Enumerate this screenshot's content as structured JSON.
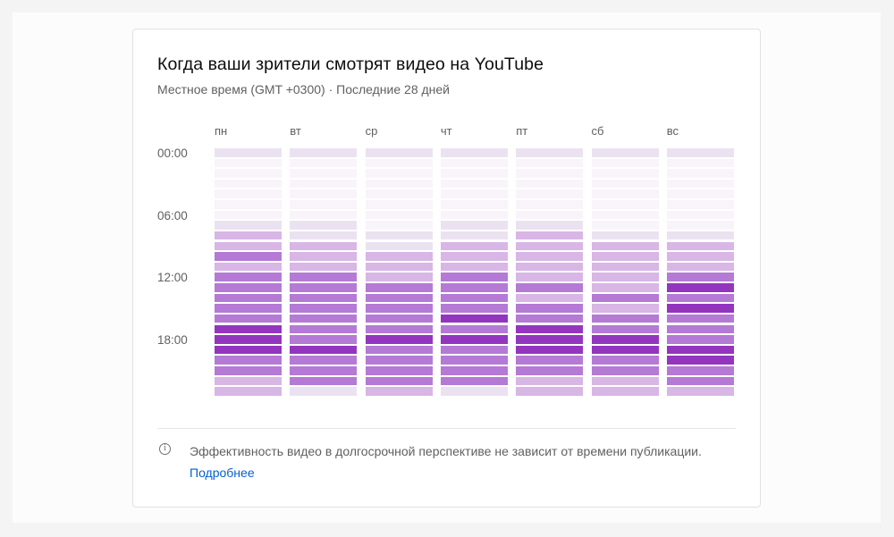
{
  "card": {
    "title": "Когда ваши зрители смотрят видео на YouTube",
    "subtitle": "Местное время (GMT +0300) · Последние 28 дней",
    "info_text": "Эффективность видео в долгосрочной перспективе не зависит от времени публикации.",
    "info_link": "Подробнее"
  },
  "colors": {
    "levels": [
      "#f8f4f9",
      "#ebe2f1",
      "#d8b6e5",
      "#b47ad5",
      "#9435bf"
    ],
    "link": "#065fd4"
  },
  "chart_data": {
    "type": "heatmap",
    "title": "Когда ваши зрители смотрят видео на YouTube",
    "subtitle": "Местное время (GMT +0300) · Последние 28 дней",
    "x_categories": [
      "пн",
      "вт",
      "ср",
      "чт",
      "пт",
      "сб",
      "вс"
    ],
    "y_tick_labels": [
      "00:00",
      "06:00",
      "12:00",
      "18:00"
    ],
    "y_categories": [
      "00",
      "01",
      "02",
      "03",
      "04",
      "05",
      "06",
      "07",
      "08",
      "09",
      "10",
      "11",
      "12",
      "13",
      "14",
      "15",
      "16",
      "17",
      "18",
      "19",
      "20",
      "21",
      "22",
      "23"
    ],
    "value_scale": "relative intensity 0 (lowest) – 4 (highest)",
    "values": [
      [
        1,
        0,
        0,
        0,
        0,
        0,
        0,
        1,
        2,
        2,
        3,
        2,
        3,
        3,
        3,
        3,
        3,
        4,
        4,
        4,
        3,
        3,
        2,
        2
      ],
      [
        1,
        0,
        0,
        0,
        0,
        0,
        0,
        1,
        1,
        2,
        2,
        2,
        3,
        3,
        3,
        3,
        3,
        3,
        3,
        4,
        3,
        3,
        3,
        1
      ],
      [
        1,
        0,
        0,
        0,
        0,
        0,
        0,
        0,
        1,
        1,
        2,
        2,
        2,
        3,
        3,
        3,
        3,
        3,
        4,
        3,
        3,
        3,
        3,
        2
      ],
      [
        1,
        0,
        0,
        0,
        0,
        0,
        0,
        1,
        1,
        2,
        2,
        2,
        3,
        3,
        3,
        3,
        4,
        3,
        4,
        3,
        3,
        3,
        3,
        1
      ],
      [
        1,
        0,
        0,
        0,
        0,
        0,
        0,
        1,
        2,
        2,
        2,
        2,
        2,
        3,
        2,
        3,
        3,
        4,
        4,
        4,
        3,
        3,
        2,
        2
      ],
      [
        1,
        0,
        0,
        0,
        0,
        0,
        0,
        0,
        1,
        2,
        2,
        2,
        2,
        2,
        3,
        2,
        3,
        3,
        4,
        4,
        3,
        3,
        2,
        2
      ],
      [
        1,
        0,
        0,
        0,
        0,
        0,
        0,
        0,
        1,
        2,
        2,
        2,
        3,
        4,
        3,
        4,
        3,
        3,
        3,
        4,
        4,
        3,
        3,
        2
      ]
    ],
    "grid": false,
    "legend": "none"
  }
}
